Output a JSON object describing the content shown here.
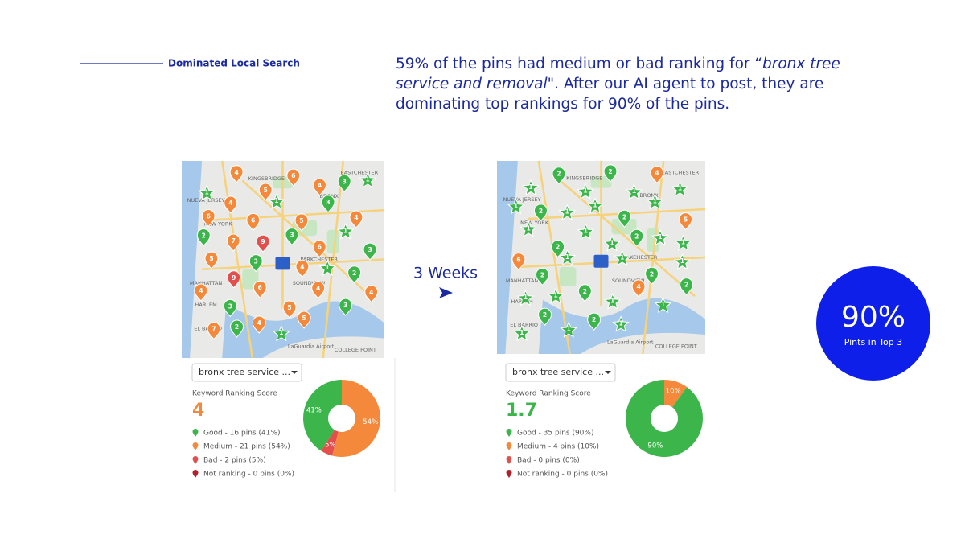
{
  "header": {
    "section_label": "Dominated Local Search",
    "headline": {
      "before": "59% of the pins had medium or bad ranking for “",
      "keyword": "bronx tree service and removal",
      "after": "\". After our AI agent to post, they are dominating top rankings for 90% of the pins."
    }
  },
  "transition": "3 Weeks",
  "map_labels": [
    "KINGSBRIDGE",
    "EASTCHESTER",
    "BRONX",
    "NUEVA JERSEY",
    "NEW YORK",
    "MANHATTAN",
    "HARLEM",
    "SOUNDVIEW",
    "PARKCHESTER",
    "EL BARRIO",
    "LaGuardia Airport",
    "COLLEGE POINT"
  ],
  "panels": [
    {
      "pins": [
        1,
        4,
        5,
        6,
        4,
        3,
        1,
        6,
        4,
        6,
        1,
        5,
        3,
        4,
        2,
        7,
        9,
        3,
        6,
        1,
        3,
        5,
        9,
        3,
        4,
        1,
        2,
        4,
        3,
        6,
        5,
        4,
        3,
        4,
        7,
        2,
        4,
        1,
        5
      ],
      "keyword": "bronx tree service ...",
      "score_label": "Keyword Ranking Score",
      "score": "4",
      "chart": {
        "type": "pie",
        "categories": [
          "Good - 16 pins (41%)",
          "Medium - 21 pins (54%)",
          "Bad - 2 pins (5%)",
          "Not ranking - 0 pins (0%)"
        ],
        "values": [
          41,
          54,
          5,
          0
        ],
        "value_labels": [
          "41%",
          "54%",
          "5%",
          null
        ],
        "colors": [
          "#3cb54a",
          "#f5893b",
          "#e1504c",
          "#b3202a"
        ]
      }
    },
    {
      "pins": [
        1,
        2,
        1,
        2,
        1,
        4,
        1,
        1,
        2,
        1,
        1,
        2,
        1,
        5,
        1,
        2,
        1,
        1,
        2,
        1,
        1,
        6,
        2,
        1,
        1,
        2,
        1,
        1,
        1,
        2,
        1,
        4,
        1,
        2,
        1,
        2,
        1,
        2,
        1
      ],
      "keyword": "bronx tree service ...",
      "score_label": "Keyword Ranking Score",
      "score": "1.7",
      "chart": {
        "type": "pie",
        "categories": [
          "Good - 35 pins (90%)",
          "Medium - 4 pins (10%)",
          "Bad - 0 pins (0%)",
          "Not ranking - 0 pins (0%)"
        ],
        "values": [
          90,
          10,
          0,
          0
        ],
        "value_labels": [
          "90%",
          "10%",
          null,
          null
        ],
        "colors": [
          "#3cb54a",
          "#f5893b",
          "#e1504c",
          "#b3202a"
        ]
      }
    }
  ],
  "badge": {
    "value": "90%",
    "label": "Pints in Top 3"
  }
}
